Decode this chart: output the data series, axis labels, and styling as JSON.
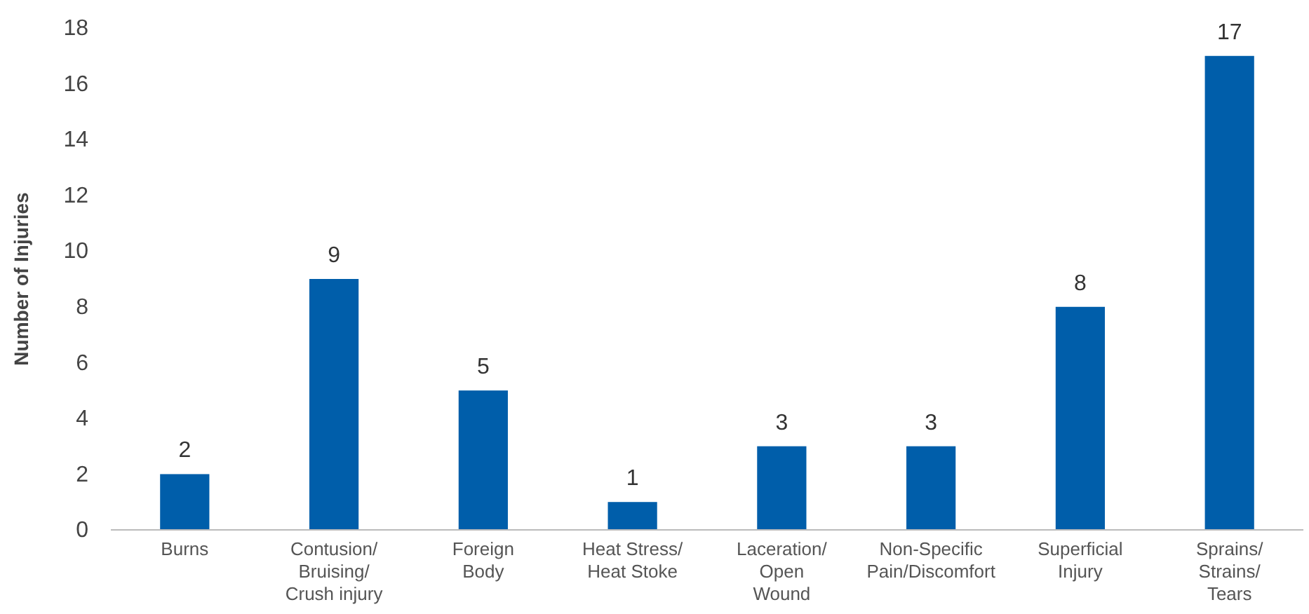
{
  "chart_data": {
    "type": "bar",
    "ylabel": "Number of Injuries",
    "categories": [
      "Burns",
      "Contusion/\nBruising/\nCrush injury",
      "Foreign\nBody",
      "Heat Stress/\nHeat Stoke",
      "Laceration/\nOpen\nWound",
      "Non-Specific\nPain/Discomfort",
      "Superficial\nInjury",
      "Sprains/\nStrains/\nTears"
    ],
    "values": [
      2,
      9,
      5,
      1,
      3,
      3,
      8,
      17
    ],
    "color": "#005eaa",
    "ylim": [
      0,
      18
    ],
    "yticks": [
      0,
      2,
      4,
      6,
      8,
      10,
      12,
      14,
      16,
      18
    ],
    "data_labels": true,
    "grid": false
  }
}
